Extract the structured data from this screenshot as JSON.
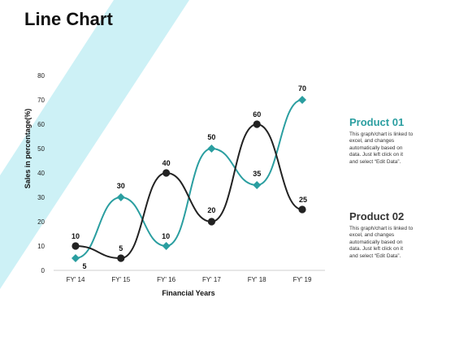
{
  "page": {
    "title": "Line Chart",
    "accent_color": "#cdf1f6"
  },
  "chart_data": {
    "type": "line",
    "title": "",
    "xlabel": "Financial Years",
    "ylabel": "Sales in percentage(%)",
    "categories": [
      "FY' 14",
      "FY' 15",
      "FY' 16",
      "FY' 17",
      "FY' 18",
      "FY' 19"
    ],
    "ylim": [
      0,
      80
    ],
    "yticks": [
      0,
      10,
      20,
      30,
      40,
      50,
      60,
      70,
      80
    ],
    "grid": false,
    "smooth": true,
    "series": [
      {
        "name": "Product 01",
        "color": "#2a9ea0",
        "marker": "diamond",
        "values": [
          5,
          30,
          10,
          50,
          35,
          70
        ]
      },
      {
        "name": "Product 02",
        "color": "#222222",
        "marker": "circle",
        "values": [
          10,
          5,
          40,
          20,
          60,
          25
        ]
      }
    ]
  },
  "legend": [
    {
      "title": "Product 01",
      "title_color": "#2a9ea0",
      "desc": [
        "This graph/chart is linked to",
        "excel, and changes",
        "automatically based on",
        "data. Just left click on it",
        "and select “Edit Data”."
      ]
    },
    {
      "title": "Product 02",
      "title_color": "#333333",
      "desc": [
        "This graph/chart is linked to",
        "excel, and changes",
        "automatically based on",
        "data. Just left click on it",
        "and select “Edit Data”."
      ]
    }
  ]
}
